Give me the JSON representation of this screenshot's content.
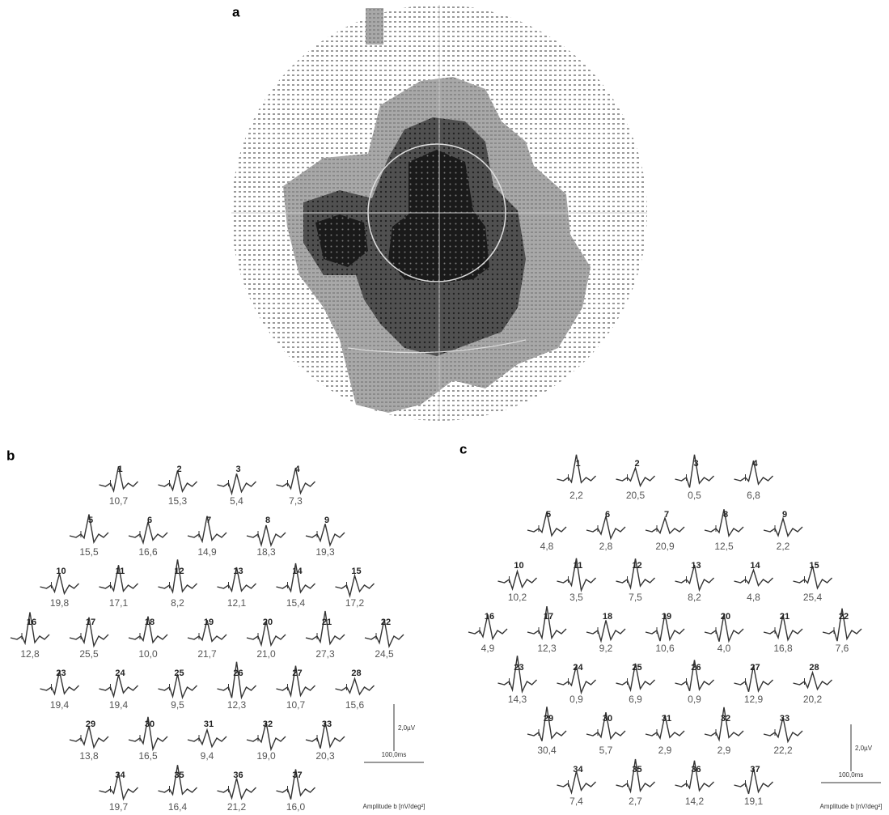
{
  "panels": [
    {
      "label": "a"
    },
    {
      "label": "b",
      "traces": [
        {
          "id": "1",
          "amplitude": "10,7"
        },
        {
          "id": "2",
          "amplitude": "15,3"
        },
        {
          "id": "3",
          "amplitude": "5,4"
        },
        {
          "id": "4",
          "amplitude": "7,3"
        },
        {
          "id": "5",
          "amplitude": "15,5"
        },
        {
          "id": "6",
          "amplitude": "16,6"
        },
        {
          "id": "7",
          "amplitude": "14,9"
        },
        {
          "id": "8",
          "amplitude": "18,3"
        },
        {
          "id": "9",
          "amplitude": "19,3"
        },
        {
          "id": "10",
          "amplitude": "19,8"
        },
        {
          "id": "11",
          "amplitude": "17,1"
        },
        {
          "id": "12",
          "amplitude": "8,2"
        },
        {
          "id": "13",
          "amplitude": "12,1"
        },
        {
          "id": "14",
          "amplitude": "15,4"
        },
        {
          "id": "15",
          "amplitude": "17,2"
        },
        {
          "id": "16",
          "amplitude": "12,8"
        },
        {
          "id": "17",
          "amplitude": "25,5"
        },
        {
          "id": "18",
          "amplitude": "10,0"
        },
        {
          "id": "19",
          "amplitude": "21,7"
        },
        {
          "id": "20",
          "amplitude": "21,0"
        },
        {
          "id": "21",
          "amplitude": "27,3"
        },
        {
          "id": "22",
          "amplitude": "24,5"
        },
        {
          "id": "23",
          "amplitude": "19,4"
        },
        {
          "id": "24",
          "amplitude": "19,4"
        },
        {
          "id": "25",
          "amplitude": "9,5"
        },
        {
          "id": "26",
          "amplitude": "12,3"
        },
        {
          "id": "27",
          "amplitude": "10,7"
        },
        {
          "id": "28",
          "amplitude": "15,6"
        },
        {
          "id": "29",
          "amplitude": "13,8"
        },
        {
          "id": "30",
          "amplitude": "16,5"
        },
        {
          "id": "31",
          "amplitude": "9,4"
        },
        {
          "id": "32",
          "amplitude": "19,0"
        },
        {
          "id": "33",
          "amplitude": "20,3"
        },
        {
          "id": "34",
          "amplitude": "19,7"
        },
        {
          "id": "35",
          "amplitude": "16,4"
        },
        {
          "id": "36",
          "amplitude": "21,2"
        },
        {
          "id": "37",
          "amplitude": "16,0"
        }
      ],
      "scale": {
        "voltage": "2,0µV",
        "time": "100,0ms",
        "caption": "Amplitude b [nV/deg²]"
      }
    },
    {
      "label": "c",
      "traces": [
        {
          "id": "1",
          "amplitude": "2,2"
        },
        {
          "id": "2",
          "amplitude": "20,5"
        },
        {
          "id": "3",
          "amplitude": "0,5"
        },
        {
          "id": "4",
          "amplitude": "6,8"
        },
        {
          "id": "5",
          "amplitude": "4,8"
        },
        {
          "id": "6",
          "amplitude": "2,8"
        },
        {
          "id": "7",
          "amplitude": "20,9"
        },
        {
          "id": "8",
          "amplitude": "12,5"
        },
        {
          "id": "9",
          "amplitude": "2,2"
        },
        {
          "id": "10",
          "amplitude": "10,2"
        },
        {
          "id": "11",
          "amplitude": "3,5"
        },
        {
          "id": "12",
          "amplitude": "7,5"
        },
        {
          "id": "13",
          "amplitude": "8,2"
        },
        {
          "id": "14",
          "amplitude": "4,8"
        },
        {
          "id": "15",
          "amplitude": "25,4"
        },
        {
          "id": "16",
          "amplitude": "4,9"
        },
        {
          "id": "17",
          "amplitude": "12,3"
        },
        {
          "id": "18",
          "amplitude": "9,2"
        },
        {
          "id": "19",
          "amplitude": "10,6"
        },
        {
          "id": "20",
          "amplitude": "4,0"
        },
        {
          "id": "21",
          "amplitude": "16,8"
        },
        {
          "id": "22",
          "amplitude": "7,6"
        },
        {
          "id": "23",
          "amplitude": "14,3"
        },
        {
          "id": "24",
          "amplitude": "0,9"
        },
        {
          "id": "25",
          "amplitude": "6,9"
        },
        {
          "id": "26",
          "amplitude": "0,9"
        },
        {
          "id": "27",
          "amplitude": "12,9"
        },
        {
          "id": "28",
          "amplitude": "20,2"
        },
        {
          "id": "29",
          "amplitude": "30,4"
        },
        {
          "id": "30",
          "amplitude": "5,7"
        },
        {
          "id": "31",
          "amplitude": "2,9"
        },
        {
          "id": "32",
          "amplitude": "2,9"
        },
        {
          "id": "33",
          "amplitude": "22,2"
        },
        {
          "id": "34",
          "amplitude": "7,4"
        },
        {
          "id": "35",
          "amplitude": "2,7"
        },
        {
          "id": "36",
          "amplitude": "14,2"
        },
        {
          "id": "37",
          "amplitude": "19,1"
        }
      ],
      "scale": {
        "voltage": "2,0µV",
        "time": "100,0ms",
        "caption": "Amplitude b [nV/deg²]"
      }
    }
  ]
}
